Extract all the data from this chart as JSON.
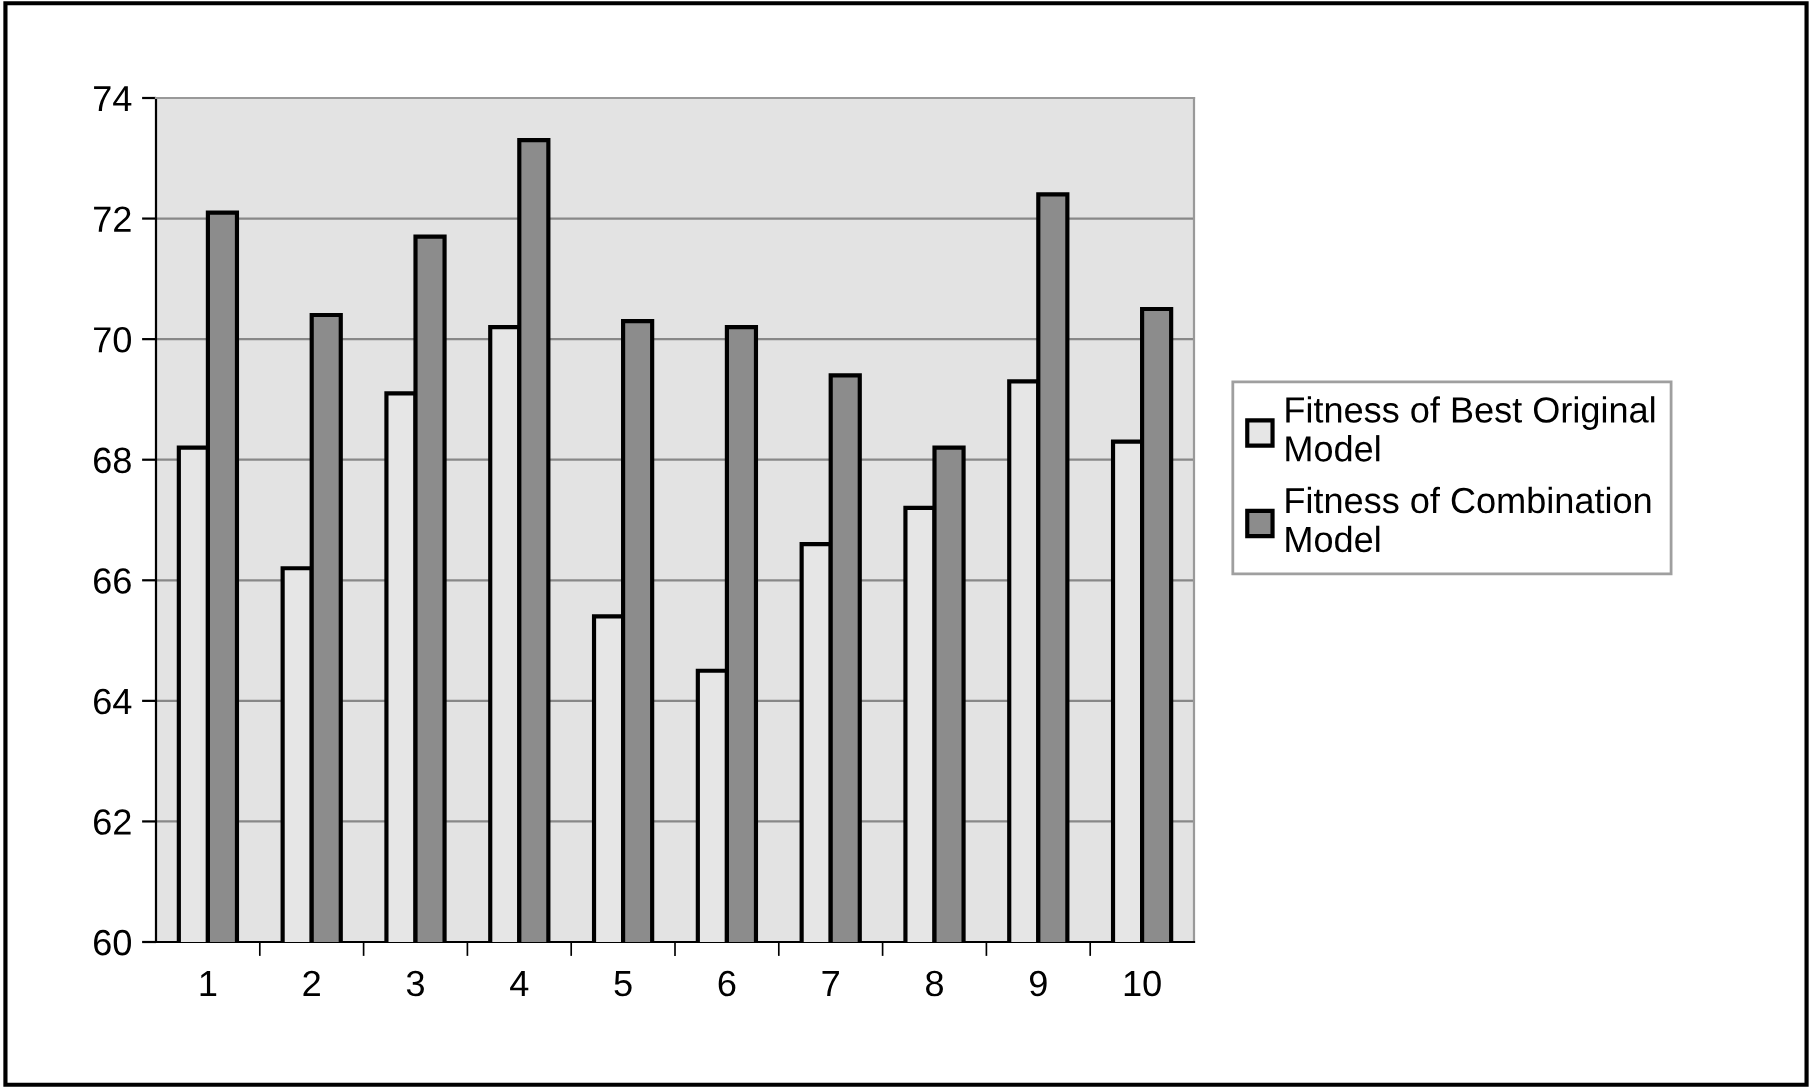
{
  "chart_data": {
    "type": "bar",
    "categories": [
      "1",
      "2",
      "3",
      "4",
      "5",
      "6",
      "7",
      "8",
      "9",
      "10"
    ],
    "series": [
      {
        "name": "Fitness of Best Original\nModel",
        "color": "#e6e6e6",
        "values": [
          68.2,
          66.2,
          69.1,
          70.2,
          65.4,
          64.5,
          66.6,
          67.2,
          69.3,
          68.3
        ]
      },
      {
        "name": "Fitness of Combination\nModel",
        "color": "#8c8c8c",
        "values": [
          72.1,
          70.4,
          71.7,
          73.3,
          70.3,
          70.2,
          69.4,
          68.2,
          72.4,
          70.5
        ]
      }
    ],
    "ylim": [
      60,
      74
    ],
    "yticks": [
      60,
      62,
      64,
      66,
      68,
      70,
      72,
      74
    ],
    "grid": "y",
    "legend": "right"
  }
}
